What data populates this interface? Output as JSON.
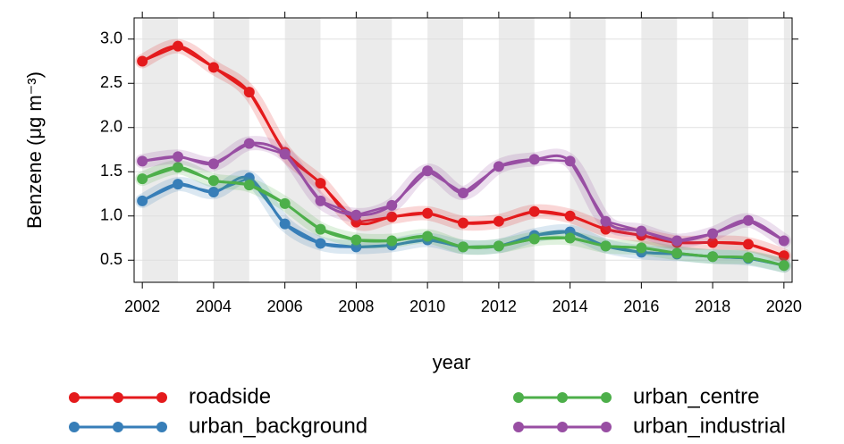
{
  "chart_data": {
    "type": "line",
    "xlabel": "year",
    "ylabel": "Benzene (μg m⁻³)",
    "x": [
      2002,
      2003,
      2004,
      2005,
      2006,
      2007,
      2008,
      2009,
      2010,
      2011,
      2012,
      2013,
      2014,
      2015,
      2016,
      2017,
      2018,
      2019,
      2020
    ],
    "series": [
      {
        "name": "roadside",
        "color": "#e41a1c",
        "values": [
          2.75,
          2.92,
          2.68,
          2.4,
          1.72,
          1.37,
          0.93,
          0.99,
          1.03,
          0.92,
          0.94,
          1.05,
          1.0,
          0.85,
          0.78,
          0.7,
          0.7,
          0.68,
          0.55
        ]
      },
      {
        "name": "urban_background",
        "color": "#377eb8",
        "values": [
          1.17,
          1.36,
          1.27,
          1.43,
          0.91,
          0.69,
          0.65,
          0.67,
          0.73,
          0.65,
          0.66,
          0.78,
          0.82,
          0.66,
          0.59,
          0.57,
          0.54,
          0.52,
          0.44
        ]
      },
      {
        "name": "urban_centre",
        "color": "#4daf4a",
        "values": [
          1.42,
          1.55,
          1.4,
          1.35,
          1.14,
          0.85,
          0.73,
          0.72,
          0.77,
          0.65,
          0.66,
          0.74,
          0.75,
          0.66,
          0.64,
          0.58,
          0.54,
          0.53,
          0.44
        ]
      },
      {
        "name": "urban_industrial",
        "color": "#984ea3",
        "values": [
          1.62,
          1.67,
          1.59,
          1.82,
          1.7,
          1.17,
          1.01,
          1.12,
          1.51,
          1.26,
          1.56,
          1.64,
          1.62,
          0.94,
          0.83,
          0.72,
          0.8,
          0.95,
          0.72
        ]
      }
    ],
    "xlim": [
      2001.77,
      2020.23
    ],
    "ylim": [
      0.25,
      3.24
    ],
    "xticks": [
      2002,
      2004,
      2006,
      2008,
      2010,
      2012,
      2014,
      2016,
      2018,
      2020
    ],
    "yticks": [
      0.5,
      {
        "value": 1,
        "label": "1.0"
      },
      1.5,
      {
        "value": 2,
        "label": "2.0"
      },
      2.5,
      {
        "value": 3,
        "label": "3.0"
      }
    ],
    "grid": true,
    "legend": "bottom"
  }
}
